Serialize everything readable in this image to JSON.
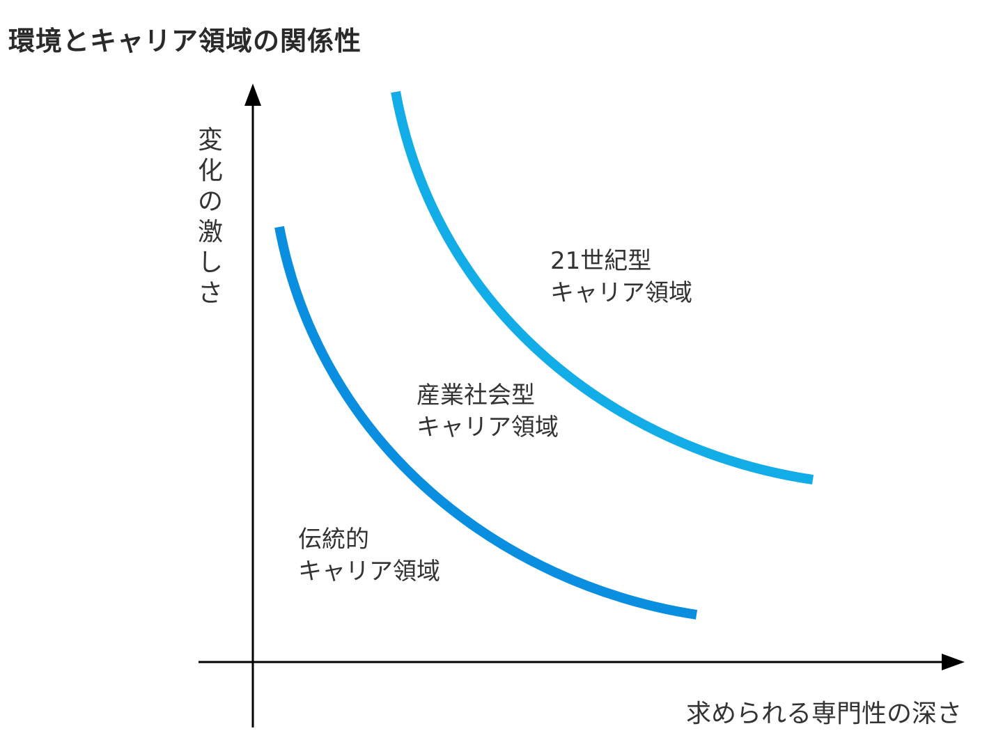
{
  "title": "環境とキャリア領域の関係性",
  "y_axis": {
    "label_chars": [
      "変",
      "化",
      "の",
      "激",
      "し",
      "さ"
    ]
  },
  "x_axis": {
    "label": "求められる専門性の深さ"
  },
  "regions": {
    "c21": {
      "line1": "21世紀型",
      "line2": "キャリア領域"
    },
    "industrial": {
      "line1": "産業社会型",
      "line2": "キャリア領域"
    },
    "traditional": {
      "line1": "伝統的",
      "line2": "キャリア領域"
    }
  },
  "colors": {
    "axis": "#000000",
    "curve_inner": "#0a8ee0",
    "curve_outer": "#12ade6"
  }
}
